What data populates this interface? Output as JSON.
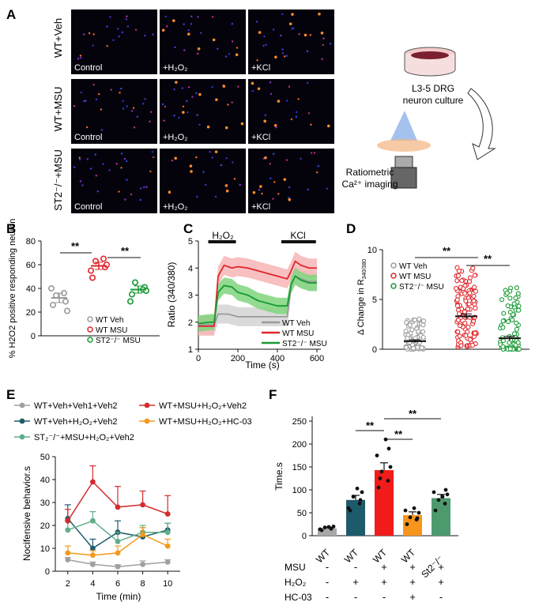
{
  "panels": {
    "A": "A",
    "B": "B",
    "C": "C",
    "D": "D",
    "E": "E",
    "F": "F"
  },
  "panel_a": {
    "rows": [
      "WT+Veh",
      "WT+MSU",
      "ST2⁻/⁻+MSU"
    ],
    "columns": [
      "Control",
      "+H₂O₂",
      "+KCl"
    ]
  },
  "schematic": {
    "culture_line1": "L3-5 DRG",
    "culture_line2": "neuron culture",
    "imaging_line1": "Ratiometric",
    "imaging_line2": "Ca²⁺ imaging"
  },
  "colors": {
    "wt_veh": "#9a9a9a",
    "wt_msu": "#e0252b",
    "st2_msu": "#169a33",
    "e_veh": "#a0a0a0",
    "e_wt_h2o2": "#1d5b6b",
    "e_msu_h2o2": "#d42c2c",
    "e_hc03": "#f39a1e",
    "e_st2": "#5fae8a",
    "f_bar1": "#a8a8a8",
    "f_bar2": "#1d5b6b",
    "f_bar3": "#f21b1b",
    "f_bar4": "#f7941d",
    "f_bar5": "#4e9a6f"
  },
  "chart_data": [
    {
      "panel": "B",
      "type": "scatter",
      "ylabel": "% H2O2 positive responding neuron",
      "ylim": [
        0,
        80
      ],
      "yticks": [
        "0",
        "20",
        "40",
        "60",
        "80"
      ],
      "legend": [
        "WT Veh",
        "WT MSU",
        "ST2⁻/⁻ MSU"
      ],
      "legend_placement": "bottom-right",
      "series": [
        {
          "name": "WT Veh",
          "mean": 32,
          "sem": 4,
          "points": [
            26,
            29,
            34,
            36,
            40,
            21
          ]
        },
        {
          "name": "WT MSU",
          "mean": 59,
          "sem": 3,
          "points": [
            49,
            58,
            63,
            65,
            55,
            60
          ]
        },
        {
          "name": "ST2⁻/⁻ MSU",
          "mean": 39,
          "sem": 3,
          "points": [
            35,
            41,
            45,
            39,
            29,
            38
          ]
        }
      ],
      "significance": [
        "**",
        "**"
      ]
    },
    {
      "panel": "C",
      "type": "line",
      "ylabel": "Ratio (340/380)",
      "xlabel": "Time (s)",
      "xlim": [
        0,
        620
      ],
      "ylim": [
        1,
        5
      ],
      "xticks": [
        "0",
        "200",
        "400",
        "600"
      ],
      "yticks": [
        "1",
        "2",
        "3",
        "4",
        "5"
      ],
      "stimuli": [
        "H₂O₂",
        "KCl"
      ],
      "legend": [
        "WT Veh",
        "WT MSU",
        "ST2⁻/⁻ MSU"
      ],
      "legend_placement": "bottom-right",
      "series": [
        {
          "name": "WT Veh",
          "x": [
            0,
            60,
            80,
            100,
            150,
            200,
            300,
            400,
            450,
            470,
            490,
            520,
            560,
            600
          ],
          "y": [
            1.9,
            1.9,
            1.9,
            2.3,
            2.3,
            2.2,
            2.2,
            2.2,
            2.2,
            3.4,
            3.7,
            3.6,
            3.5,
            3.5
          ]
        },
        {
          "name": "WT MSU",
          "x": [
            0,
            60,
            80,
            100,
            130,
            170,
            200,
            250,
            300,
            350,
            400,
            450,
            470,
            490,
            520,
            560,
            600
          ],
          "y": [
            1.85,
            1.85,
            1.85,
            3.7,
            4.1,
            4.0,
            4.05,
            4.0,
            3.9,
            3.8,
            3.7,
            3.6,
            3.9,
            4.25,
            4.1,
            4.0,
            4.0
          ]
        },
        {
          "name": "ST2⁻/⁻ MSU",
          "x": [
            0,
            60,
            80,
            100,
            130,
            170,
            200,
            250,
            300,
            350,
            400,
            450,
            470,
            490,
            520,
            560,
            600
          ],
          "y": [
            1.95,
            2.0,
            2.0,
            3.1,
            3.35,
            3.3,
            3.1,
            3.0,
            2.8,
            2.7,
            2.6,
            2.6,
            3.4,
            3.7,
            3.55,
            3.45,
            3.45
          ]
        }
      ]
    },
    {
      "panel": "D",
      "type": "scatter",
      "ylabel": "Δ Change in R",
      "ylabel_sub": "340/380",
      "ylim": [
        0,
        10
      ],
      "yticks": [
        "0",
        "5",
        "10"
      ],
      "legend": [
        "WT Veh",
        "WT MSU",
        "ST2⁻/⁻ MSU"
      ],
      "legend_placement": "top-left",
      "series": [
        {
          "name": "WT Veh",
          "mean": 0.8,
          "sem": 0.15
        },
        {
          "name": "WT MSU",
          "mean": 3.3,
          "sem": 0.25
        },
        {
          "name": "ST2⁻/⁻ MSU",
          "mean": 1.1,
          "sem": 0.2
        }
      ],
      "significance": [
        "**",
        "**"
      ]
    },
    {
      "panel": "E",
      "type": "line",
      "ylabel": "Nocifensive behavior.s",
      "xlabel": "Time (min)",
      "xlim": [
        1,
        11
      ],
      "ylim": [
        0,
        50
      ],
      "xticks": [
        "2",
        "4",
        "6",
        "8",
        "10"
      ],
      "yticks": [
        "0",
        "10",
        "20",
        "30",
        "40",
        "50"
      ],
      "legend_placement": "top",
      "x": [
        2,
        4,
        6,
        8,
        10
      ],
      "series": [
        {
          "name": "WT+Veh+Veh1+Veh2",
          "values": [
            5,
            3,
            2,
            3,
            4
          ],
          "err": [
            1,
            1,
            0.8,
            1.5,
            1
          ]
        },
        {
          "name": "WT+Veh+H₂O₂+Veh2",
          "values": [
            23,
            10,
            17,
            15,
            18
          ],
          "err": [
            6,
            4,
            5,
            4,
            3
          ]
        },
        {
          "name": "ST₂⁻/⁻+MSU+H₂O₂+Veh2",
          "values": [
            18,
            22,
            13,
            17,
            17
          ],
          "err": [
            4,
            4,
            4,
            3,
            4
          ]
        },
        {
          "name": "WT+MSU+H₂O₂+Veh2",
          "values": [
            22,
            39,
            28,
            29,
            25
          ],
          "err": [
            5,
            7,
            9,
            6,
            8
          ]
        },
        {
          "name": "WT+MSU+H₂O₂+HC-03",
          "values": [
            8,
            7,
            8,
            16,
            11
          ],
          "err": [
            3,
            2,
            3,
            3,
            3
          ]
        }
      ]
    },
    {
      "panel": "F",
      "type": "bar",
      "ylabel": "Time.s",
      "ylim": [
        0,
        250
      ],
      "yticks": [
        "0",
        "50",
        "100",
        "150",
        "200",
        "250"
      ],
      "categories": [
        "WT",
        "WT",
        "WT",
        "WT",
        "St2⁻/⁻"
      ],
      "values": [
        16,
        78,
        143,
        45,
        82
      ],
      "errors": [
        3,
        10,
        16,
        7,
        8
      ],
      "points": [
        [
          12,
          15,
          18,
          20,
          14,
          19
        ],
        [
          55,
          70,
          85,
          95,
          60,
          103,
          78
        ],
        [
          105,
          120,
          140,
          150,
          175,
          210,
          190,
          125
        ],
        [
          25,
          35,
          40,
          50,
          55,
          60,
          38
        ],
        [
          55,
          70,
          78,
          90,
          95,
          85,
          100
        ]
      ],
      "significance": [
        "**",
        "**",
        "**"
      ],
      "treatments": [
        {
          "label": "MSU",
          "marks": [
            "-",
            "-",
            "+",
            "+",
            "+"
          ]
        },
        {
          "label": "H₂O₂",
          "marks": [
            "-",
            "+",
            "+",
            "+",
            "+"
          ]
        },
        {
          "label": "HC-03",
          "marks": [
            "-",
            "-",
            "-",
            "+",
            "-"
          ]
        }
      ]
    }
  ]
}
